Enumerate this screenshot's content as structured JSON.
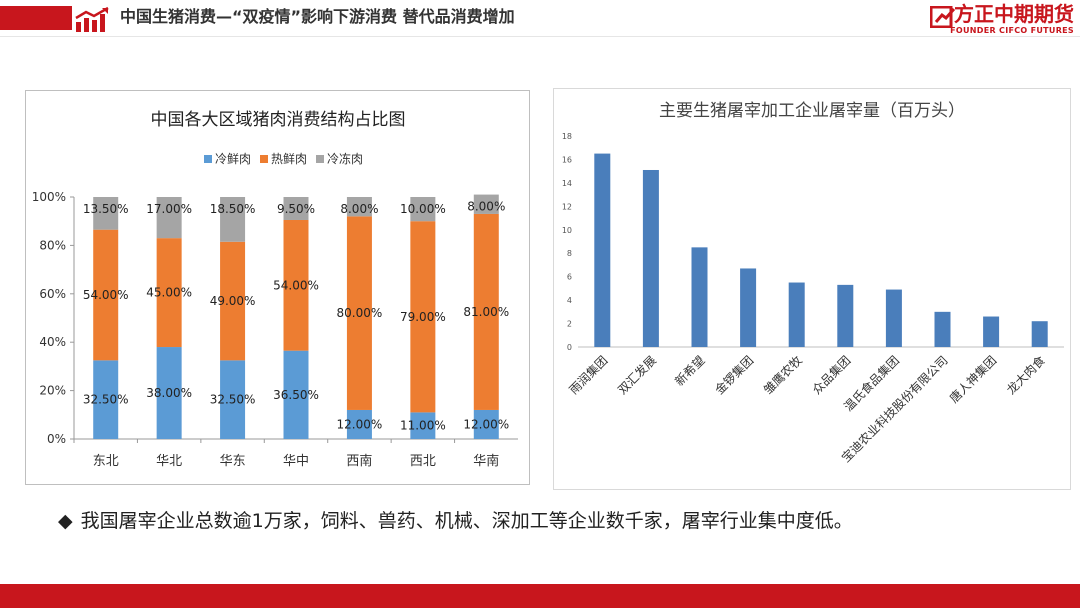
{
  "header": {
    "title": "中国生猪消费—“双疫情”影响下游消费   替代品消费增加",
    "brand_cn": "方正中期期货",
    "brand_en": "FOUNDER CIFCO FUTURES"
  },
  "bullet": "我国屠宰企业总数逾1万家，饲料、兽药、机械、深加工等企业数千家，屠宰行业集中度低。",
  "chart_data": [
    {
      "type": "bar",
      "stacked": true,
      "title": "中国各大区域猪肉消费结构占比图",
      "categories": [
        "东北",
        "华北",
        "华东",
        "华中",
        "西南",
        "西北",
        "华南"
      ],
      "series": [
        {
          "name": "冷鲜肉",
          "color": "#5b9bd5",
          "values": [
            32.5,
            38.0,
            32.5,
            36.5,
            12.0,
            11.0,
            12.0
          ],
          "labels": [
            "32.50%",
            "38.00%",
            "32.50%",
            "36.50%",
            "12.00%",
            "11.00%",
            "12.00%"
          ]
        },
        {
          "name": "热鲜肉",
          "color": "#ed7d31",
          "values": [
            54.0,
            45.0,
            49.0,
            54.0,
            80.0,
            79.0,
            81.0
          ],
          "labels": [
            "54.00%",
            "45.00%",
            "49.00%",
            "54.00%",
            "80.00%",
            "79.00%",
            "81.00%"
          ]
        },
        {
          "name": "冷冻肉",
          "color": "#a5a5a5",
          "values": [
            13.5,
            17.0,
            18.5,
            9.5,
            8.0,
            10.0,
            8.0
          ],
          "labels": [
            "13.50%",
            "17.00%",
            "18.50%",
            "9.50%",
            "8.00%",
            "10.00%",
            "8.00%"
          ]
        }
      ],
      "ylim": [
        0,
        100
      ],
      "yticks": [
        "0%",
        "20%",
        "40%",
        "60%",
        "80%",
        "100%"
      ],
      "legend": "top",
      "grid": false
    },
    {
      "type": "bar",
      "title": "主要生猪屠宰加工企业屠宰量（百万头）",
      "categories": [
        "雨润集团",
        "双汇发展",
        "新希望",
        "金锣集团",
        "雏鹰农牧",
        "众品集团",
        "温氏食品集团",
        "宝迪农业科技股份有限公司",
        "唐人神集团",
        "龙大肉食"
      ],
      "values": [
        16.5,
        15.1,
        8.5,
        6.7,
        5.5,
        5.3,
        4.9,
        3.0,
        2.6,
        2.2
      ],
      "color": "#4a7ebb",
      "ylim": [
        0,
        18
      ],
      "yticks": [
        "0",
        "2",
        "4",
        "6",
        "8",
        "10",
        "12",
        "14",
        "16",
        "18"
      ],
      "grid": false
    }
  ]
}
